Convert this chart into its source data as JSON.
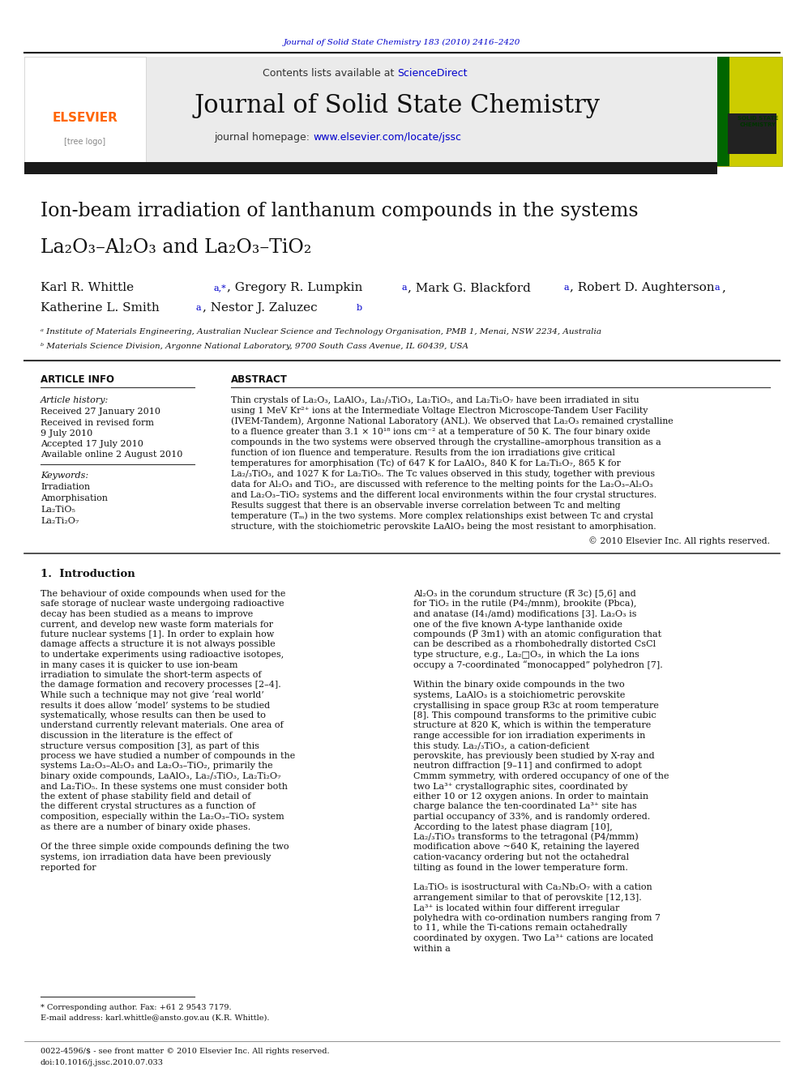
{
  "journal_ref": "Journal of Solid State Chemistry 183 (2010) 2416–2420",
  "journal_name": "Journal of Solid State Chemistry",
  "journal_url": "journal homepage: www.elsevier.com/locate/jssc",
  "contents_line": "Contents lists available at ScienceDirect",
  "title_line1": "Ion-beam irradiation of lanthanum compounds in the systems",
  "title_line2": "La₂O₃–Al₂O₃ and La₂O₃–TiO₂",
  "authors": "Karl R. Whittle ᵃ,*, Gregory R. Lumpkin ᵃ, Mark G. Blackford ᵃ, Robert D. Aughterson ᵃ,\nKatherine L. Smith ᵃ, Nestor J. Zaluzec ᵇ",
  "affil_a": "ᵃ Institute of Materials Engineering, Australian Nuclear Science and Technology Organisation, PMB 1, Menai, NSW 2234, Australia",
  "affil_b": "ᵇ Materials Science Division, Argonne National Laboratory, 9700 South Cass Avenue, IL 60439, USA",
  "article_info_label": "ARTICLE INFO",
  "abstract_label": "ABSTRACT",
  "article_history_label": "Article history:",
  "received": "Received 27 January 2010",
  "received_revised": "Received in revised form",
  "revised_date": "9 July 2010",
  "accepted": "Accepted 17 July 2010",
  "available": "Available online 2 August 2010",
  "keywords_label": "Keywords:",
  "keywords": [
    "Irradiation",
    "Amorphisation",
    "La₂TiO₅",
    "La₂Ti₂O₇"
  ],
  "abstract_text": "Thin crystals of La₂O₃, LaAlO₃, La₂/₃TiO₃, La₂TiO₅, and La₂Ti₂O₇ have been irradiated in situ using 1 MeV Kr²⁺ ions at the Intermediate Voltage Electron Microscope-Tandem User Facility (IVEM-Tandem), Argonne National Laboratory (ANL). We observed that La₂O₃ remained crystalline to a fluence greater than 3.1 × 10¹⁸ ions cm⁻² at a temperature of 50 K. The four binary oxide compounds in the two systems were observed through the crystalline–amorphous transition as a function of ion fluence and temperature. Results from the ion irradiations give critical temperatures for amorphisation (Tᴄ) of 647 K for LaAlO₃, 840 K for La₂Ti₂O₇, 865 K for La₂/₃TiO₃, and 1027 K for La₂TiO₅. The Tᴄ values observed in this study, together with previous data for Al₂O₃ and TiO₂, are discussed with reference to the melting points for the La₂O₃–Al₂O₃ and La₂O₃–TiO₂ systems and the different local environments within the four crystal structures. Results suggest that there is an observable inverse correlation between Tᴄ and melting temperature (Tₘ) in the two systems. More complex relationships exist between Tᴄ and crystal structure, with the stoichiometric perovskite LaAlO₃ being the most resistant to amorphisation.",
  "copyright": "© 2010 Elsevier Inc. All rights reserved.",
  "section1_title": "1.  Introduction",
  "intro_left": "The behaviour of oxide compounds when used for the safe storage of nuclear waste undergoing radioactive decay has been studied as a means to improve current, and develop new waste form materials for future nuclear systems [1]. In order to explain how damage affects a structure it is not always possible to undertake experiments using radioactive isotopes, in many cases it is quicker to use ion-beam irradiation to simulate the short-term aspects of the damage formation and recovery processes [2–4]. While such a technique may not give ‘real world’ results it does allow ‘model’ systems to be studied systematically, whose results can then be used to understand currently relevant materials. One area of discussion in the literature is the effect of structure versus composition [3], as part of this process we have studied a number of compounds in the systems La₂O₃–Al₂O₃ and La₂O₃–TiO₂, primarily the binary oxide compounds, LaAlO₃, La₂/₃TiO₃, La₂Ti₂O₇ and La₂TiO₅. In these systems one must consider both the extent of phase stability field and detail of the different crystal structures as a function of composition, especially within the La₂O₃–TiO₂ system as there are a number of binary oxide phases.\n\n   Of the three simple oxide compounds defining the two systems, ion irradiation data have been previously reported for",
  "intro_right": "Al₂O₃ in the corundum structure (R̅ 3c) [5,6] and for TiO₂ in the rutile (P4₂/mnm), brookite (Pbca), and anatase (I4₁/amd) modifications [3]. La₂O₃ is one of the five known A-type lanthanide oxide compounds (P̅ 3m1) with an atomic configuration that can be described as a rhombohedrally distorted CsCl type structure, e.g., La₂□O₃, in which the La ions occupy a 7-coordinated “monocapped” polyhedron [7].\n\n   Within the binary oxide compounds in the two systems, LaAlO₃ is a stoichiometric perovskite crystallising in space group R3c at room temperature [8]. This compound transforms to the primitive cubic structure at 820 K, which is within the temperature range accessible for ion irradiation experiments in this study. La₂/₃TiO₃, a cation-deficient perovskite, has previously been studied by X-ray and neutron diffraction [9–11] and confirmed to adopt Cmmm symmetry, with ordered occupancy of one of the two La³⁺ crystallographic sites, coordinated by either 10 or 12 oxygen anions. In order to maintain charge balance the ten-coordinated La³⁺ site has partial occupancy of 33%, and is randomly ordered. According to the latest phase diagram [10], La₂/₃TiO₃ transforms to the tetragonal (P4/mmm) modification above ~640 K, retaining the layered cation-vacancy ordering but not the octahedral tilting as found in the lower temperature form.\n\n   La₂TiO₅ is isostructural with Ca₂Nb₂O₇ with a cation arrangement similar to that of perovskite [12,13]. La³⁺ is located within four different irregular polyhedra with co-ordination numbers ranging from 7 to 11, while the Ti-cations remain octahedrally coordinated by oxygen. Two La³⁺ cations are located within a",
  "footnote1": "* Corresponding author. Fax: +61 2 9543 7179.",
  "footnote2": "E-mail address: karl.whittle@ansto.gov.au (K.R. Whittle).",
  "footer1": "0022-4596/$ - see front matter © 2010 Elsevier Inc. All rights reserved.",
  "footer2": "doi:10.1016/j.jssc.2010.07.033",
  "bg_color": "#ffffff",
  "header_bg": "#e8e8e8",
  "dark_bar": "#1a1a2e",
  "blue_link": "#0000cc",
  "elsevier_orange": "#ff6600",
  "title_color": "#000000",
  "author_color": "#000000",
  "section_color": "#000000"
}
